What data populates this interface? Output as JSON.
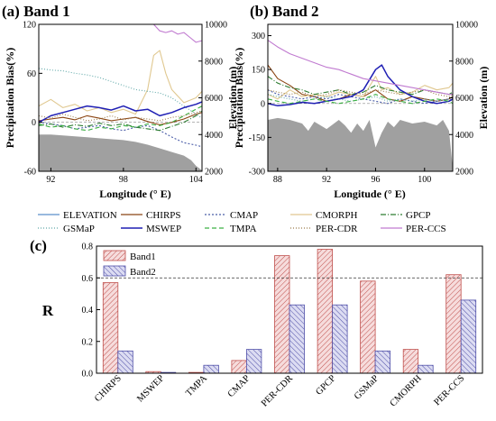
{
  "chart_data": [
    {
      "panel": "(a)",
      "type": "line",
      "title": "(a) Band 1",
      "xlabel": "Longitude (° E)",
      "ylabel": "Precipitation Bias(%)",
      "y2label": "Elevation (m)",
      "xticks": [
        92,
        98,
        104
      ],
      "yticks": [
        -60,
        0,
        60,
        120
      ],
      "y2ticks": [
        2000,
        4000,
        6000,
        8000,
        10000
      ],
      "xlim": [
        91,
        104.5
      ],
      "ylim": [
        -60,
        120
      ],
      "y2lim": [
        2000,
        10000
      ],
      "elevation": {
        "x": [
          91,
          92,
          93,
          94,
          95,
          96,
          97,
          98,
          99,
          100,
          101,
          102,
          103,
          103.6,
          104,
          104.5
        ],
        "y": [
          4000,
          4000,
          3950,
          3900,
          3850,
          3800,
          3750,
          3700,
          3600,
          3450,
          3250,
          3050,
          2850,
          2600,
          2300,
          2050
        ]
      },
      "series": [
        {
          "name": "CHIRPS",
          "x": [
            91,
            92,
            93,
            94,
            95,
            96,
            97,
            98,
            99,
            100,
            101,
            102,
            103,
            104,
            104.5
          ],
          "y": [
            2,
            4,
            6,
            3,
            8,
            5,
            2,
            4,
            6,
            1,
            -3,
            0,
            4,
            10,
            12
          ]
        },
        {
          "name": "CMAP",
          "x": [
            91,
            92,
            93,
            94,
            95,
            96,
            97,
            98,
            99,
            100,
            101,
            102,
            103,
            104,
            104.5
          ],
          "y": [
            0,
            -2,
            -4,
            -8,
            -6,
            -4,
            -8,
            -10,
            -6,
            -4,
            -10,
            -18,
            -25,
            -28,
            -30
          ]
        },
        {
          "name": "CMORPH",
          "x": [
            91,
            92,
            93,
            94,
            95,
            96,
            97,
            98,
            99,
            100,
            100.5,
            101,
            101.5,
            102,
            103,
            104,
            104.5
          ],
          "y": [
            20,
            28,
            18,
            22,
            14,
            18,
            12,
            16,
            10,
            40,
            82,
            88,
            60,
            40,
            24,
            30,
            38
          ]
        },
        {
          "name": "GPCP",
          "x": [
            91,
            92,
            93,
            94,
            95,
            96,
            97,
            98,
            99,
            100,
            101,
            102,
            103,
            104,
            104.5
          ],
          "y": [
            -4,
            -2,
            -6,
            -3,
            -5,
            -1,
            -4,
            -2,
            -6,
            -8,
            -10,
            -5,
            0,
            8,
            14
          ]
        },
        {
          "name": "GSMaP",
          "x": [
            91,
            92,
            93,
            94,
            95,
            96,
            97,
            98,
            99,
            100,
            101,
            102,
            103,
            104,
            104.5
          ],
          "y": [
            66,
            64,
            63,
            60,
            58,
            55,
            50,
            45,
            40,
            38,
            36,
            30,
            20,
            10,
            5
          ]
        },
        {
          "name": "MSWEP",
          "x": [
            91,
            92,
            93,
            94,
            95,
            96,
            97,
            98,
            99,
            100,
            101,
            102,
            103,
            104,
            104.5
          ],
          "y": [
            0,
            8,
            12,
            16,
            20,
            18,
            15,
            20,
            14,
            16,
            8,
            12,
            18,
            22,
            25
          ]
        },
        {
          "name": "TMPA",
          "x": [
            91,
            92,
            93,
            94,
            95,
            96,
            97,
            98,
            99,
            100,
            101,
            102,
            103,
            104,
            104.5
          ],
          "y": [
            -2,
            -6,
            -4,
            -8,
            -10,
            -6,
            -8,
            -4,
            -6,
            -2,
            -4,
            0,
            8,
            16,
            20
          ]
        },
        {
          "name": "PER-CDR",
          "x": [
            91,
            92,
            93,
            94,
            95,
            96,
            97,
            98,
            99,
            100,
            101,
            102,
            103,
            104,
            104.5
          ],
          "y": [
            8,
            5,
            10,
            6,
            2,
            4,
            8,
            3,
            6,
            4,
            2,
            6,
            8,
            12,
            14
          ]
        },
        {
          "name": "PER-CCS",
          "x": [
            100.5,
            101,
            101.5,
            102,
            102.5,
            103,
            103.5,
            104,
            104.5
          ],
          "y": [
            120,
            112,
            110,
            112,
            108,
            110,
            104,
            98,
            100
          ]
        }
      ]
    },
    {
      "panel": "(b)",
      "type": "line",
      "title": "(b) Band 2",
      "xlabel": "Longitude (° E)",
      "ylabel": "Precipitation Bias(%)",
      "y2label": "Elevation (m)",
      "xticks": [
        88,
        92,
        96,
        100
      ],
      "yticks": [
        -300,
        -150,
        0,
        150,
        300
      ],
      "y2ticks": [
        2000,
        4000,
        6000,
        8000,
        10000
      ],
      "xlim": [
        87.2,
        102.3
      ],
      "ylim": [
        -300,
        350
      ],
      "y2lim": [
        2000,
        10000
      ],
      "elevation": {
        "x": [
          87.2,
          88,
          89,
          90,
          90.5,
          91,
          92,
          93,
          93.5,
          94,
          94.5,
          95,
          95.5,
          96,
          96.5,
          97,
          97.5,
          98,
          99,
          100,
          101,
          101.5,
          102,
          102.3
        ],
        "y": [
          4800,
          4900,
          4800,
          4600,
          4200,
          4700,
          4300,
          4800,
          4500,
          4100,
          4600,
          4200,
          4800,
          3300,
          4100,
          4700,
          4400,
          4800,
          4600,
          4700,
          4500,
          4800,
          4200,
          2200
        ]
      },
      "series": [
        {
          "name": "CHIRPS",
          "x": [
            87.2,
            88,
            89,
            90,
            91,
            92,
            93,
            94,
            95,
            96,
            97,
            98,
            99,
            100,
            101,
            102,
            102.3
          ],
          "y": [
            170,
            110,
            80,
            40,
            30,
            10,
            20,
            40,
            30,
            60,
            20,
            10,
            30,
            20,
            10,
            20,
            30
          ]
        },
        {
          "name": "CMAP",
          "x": [
            87.2,
            88,
            89,
            90,
            91,
            92,
            93,
            94,
            95,
            96,
            97,
            98,
            99,
            100,
            101,
            102,
            102.3
          ],
          "y": [
            60,
            40,
            30,
            20,
            30,
            20,
            40,
            30,
            20,
            10,
            0,
            20,
            10,
            0,
            10,
            20,
            10
          ]
        },
        {
          "name": "CMORPH",
          "x": [
            87.2,
            88,
            89,
            90,
            91,
            92,
            93,
            94,
            95,
            96,
            96.5,
            97,
            98,
            99,
            100,
            101,
            102,
            102.3
          ],
          "y": [
            40,
            20,
            60,
            30,
            40,
            30,
            50,
            40,
            30,
            120,
            60,
            70,
            40,
            50,
            80,
            60,
            70,
            90
          ]
        },
        {
          "name": "GPCP",
          "x": [
            87.2,
            88,
            89,
            90,
            91,
            92,
            93,
            94,
            95,
            96,
            97,
            98,
            99,
            100,
            101,
            102,
            102.3
          ],
          "y": [
            120,
            90,
            70,
            60,
            40,
            50,
            60,
            40,
            50,
            80,
            60,
            50,
            40,
            60,
            50,
            40,
            50
          ]
        },
        {
          "name": "GSMaP",
          "x": [
            87.2,
            88,
            89,
            90,
            91,
            92,
            93,
            94,
            95,
            96,
            97,
            98,
            99,
            100,
            101,
            102,
            102.3
          ],
          "y": [
            40,
            30,
            20,
            10,
            20,
            30,
            20,
            10,
            20,
            30,
            10,
            20,
            10,
            20,
            10,
            20,
            10
          ]
        },
        {
          "name": "MSWEP",
          "x": [
            87.2,
            88,
            89,
            90,
            91,
            92,
            93,
            94,
            95,
            96,
            96.5,
            97,
            98,
            99,
            100,
            101,
            102,
            102.3
          ],
          "y": [
            0,
            -10,
            -5,
            5,
            0,
            10,
            20,
            30,
            60,
            150,
            170,
            120,
            60,
            30,
            10,
            0,
            10,
            20
          ]
        },
        {
          "name": "TMPA",
          "x": [
            87.2,
            88,
            89,
            90,
            91,
            92,
            93,
            94,
            95,
            96,
            97,
            98,
            99,
            100,
            101,
            102,
            102.3
          ],
          "y": [
            20,
            10,
            0,
            10,
            20,
            10,
            0,
            10,
            20,
            40,
            20,
            10,
            0,
            10,
            20,
            10,
            0
          ]
        },
        {
          "name": "PER-CDR",
          "x": [
            87.2,
            88,
            89,
            90,
            91,
            92,
            93,
            94,
            95,
            96,
            97,
            98,
            99,
            100,
            101,
            102,
            102.3
          ],
          "y": [
            60,
            50,
            40,
            50,
            30,
            40,
            60,
            50,
            40,
            60,
            50,
            40,
            50,
            60,
            40,
            30,
            40
          ]
        },
        {
          "name": "PER-CCS",
          "x": [
            87.2,
            88,
            89,
            90,
            91,
            92,
            93,
            94,
            95,
            96,
            97,
            98,
            99,
            100,
            101,
            102,
            102.3
          ],
          "y": [
            280,
            250,
            220,
            200,
            180,
            160,
            150,
            130,
            110,
            100,
            90,
            80,
            70,
            60,
            50,
            40,
            40
          ]
        }
      ]
    },
    {
      "panel": "(c)",
      "type": "bar",
      "title": "(c)",
      "ylabel": "R",
      "categories": [
        "CHIRPS",
        "MSWEP",
        "TMPA",
        "CMAP",
        "PER-CDR",
        "GPCP",
        "GSMaP",
        "CMORPH",
        "PER-CCS"
      ],
      "series": [
        {
          "name": "Band1",
          "values": [
            0.57,
            0.01,
            0.005,
            0.08,
            0.74,
            0.78,
            0.58,
            0.15,
            0.62
          ]
        },
        {
          "name": "Band2",
          "values": [
            0.14,
            0.005,
            0.05,
            0.15,
            0.43,
            0.43,
            0.14,
            0.05,
            0.46
          ]
        }
      ],
      "ylim": [
        0,
        0.8
      ],
      "yticks": [
        0.0,
        0.2,
        0.4,
        0.6,
        0.8
      ],
      "reference_line": 0.6,
      "legend_position": "top-left"
    }
  ],
  "legend": [
    "ELEVATION",
    "CHIRPS",
    "CMAP",
    "CMORPH",
    "GPCP",
    "GSMaP",
    "MSWEP",
    "TMPA",
    "PER-CDR",
    "PER-CCS"
  ],
  "colors": {
    "ELEVATION": "#a0a0a0",
    "ELEVATION_line": "#5b8fc9",
    "CHIRPS": "#8b4513",
    "CMAP": "#4b5da8",
    "CMORPH": "#e0c890",
    "GPCP": "#2e7d32",
    "GSMaP": "#5fa8a8",
    "MSWEP": "#1f1fb4",
    "TMPA": "#3cb043",
    "PER-CDR": "#9b7b4b",
    "PER-CCS": "#c07ad0",
    "Band1": "#c0504d",
    "Band2": "#4f4fa8"
  }
}
